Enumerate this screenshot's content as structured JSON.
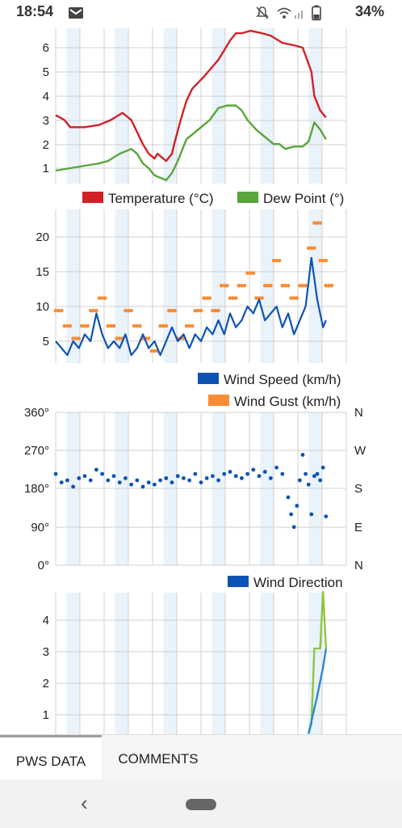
{
  "status_bar": {
    "time": "18:54",
    "battery": "34%",
    "icons": [
      "mail-icon",
      "mute-icon",
      "wifi-icon",
      "signal-icon",
      "battery-icon"
    ]
  },
  "colors": {
    "temperature": "#d32027",
    "dew_point": "#59a53b",
    "wind_speed": "#0d53b5",
    "wind_gust": "#f88c34",
    "wind_direction": "#0d53b5",
    "band": "#eaf2fa",
    "grid": "#d0d0d0"
  },
  "chart_data": [
    {
      "type": "line",
      "title": "",
      "y_ticks": [
        "1",
        "2",
        "3",
        "4",
        "5",
        "6"
      ],
      "ylim": [
        0.6,
        6.8
      ],
      "x_range": [
        0,
        100
      ],
      "legend_position": "bottom",
      "series": [
        {
          "name": "Temperature (°C)",
          "x": [
            0,
            3,
            5,
            10,
            15,
            19,
            23,
            26,
            28,
            30,
            32,
            34,
            35,
            38,
            40,
            41,
            43,
            45,
            47,
            51,
            56,
            60,
            62,
            64,
            67,
            71,
            74,
            78,
            82,
            85,
            88,
            89,
            91,
            93
          ],
          "values": [
            3.2,
            3.0,
            2.7,
            2.7,
            2.8,
            3.0,
            3.3,
            3.0,
            2.5,
            2.0,
            1.6,
            1.4,
            1.6,
            1.3,
            1.6,
            2.1,
            3.0,
            3.8,
            4.3,
            4.8,
            5.5,
            6.3,
            6.6,
            6.6,
            6.7,
            6.6,
            6.5,
            6.2,
            6.1,
            6.0,
            5.0,
            4.0,
            3.4,
            3.1
          ]
        },
        {
          "name": "Dew Point (°)",
          "x": [
            0,
            5,
            10,
            15,
            18,
            22,
            26,
            28,
            30,
            32,
            34,
            36,
            38,
            40,
            42,
            45,
            49,
            53,
            56,
            59,
            62,
            64,
            66,
            69,
            72,
            75,
            77,
            79,
            82,
            85,
            87,
            89,
            91,
            93
          ],
          "values": [
            0.9,
            1.0,
            1.1,
            1.2,
            1.3,
            1.6,
            1.8,
            1.6,
            1.2,
            1.0,
            0.7,
            0.6,
            0.5,
            0.8,
            1.3,
            2.2,
            2.6,
            3.0,
            3.5,
            3.6,
            3.6,
            3.4,
            3.0,
            2.6,
            2.3,
            2.0,
            2.0,
            1.8,
            1.9,
            1.9,
            2.1,
            2.9,
            2.6,
            2.2
          ]
        }
      ]
    },
    {
      "type": "line",
      "title": "",
      "y_ticks": [
        "5",
        "10",
        "15",
        "20"
      ],
      "ylim": [
        2,
        24
      ],
      "x_range": [
        0,
        100
      ],
      "legend_position": "bottom-right",
      "series": [
        {
          "name": "Wind Speed (km/h)",
          "x": [
            0,
            2,
            4,
            6,
            8,
            10,
            12,
            14,
            16,
            18,
            20,
            22,
            24,
            26,
            28,
            30,
            32,
            34,
            36,
            38,
            40,
            42,
            44,
            46,
            48,
            50,
            52,
            54,
            56,
            58,
            60,
            62,
            64,
            66,
            68,
            70,
            72,
            74,
            76,
            78,
            80,
            82,
            84,
            86,
            88,
            90,
            92,
            93
          ],
          "values": [
            5,
            4,
            3,
            5,
            4,
            6,
            5,
            9,
            6,
            4,
            5,
            4,
            6,
            3,
            4,
            6,
            4,
            5,
            3,
            5,
            7,
            5,
            6,
            4,
            6,
            5,
            7,
            6,
            8,
            6,
            9,
            7,
            8,
            10,
            9,
            11,
            8,
            9,
            10,
            7,
            9,
            6,
            8,
            10,
            17,
            11,
            7,
            8
          ]
        },
        {
          "name": "Wind Gust (km/h)",
          "x": [
            0,
            3,
            6,
            9,
            12,
            15,
            18,
            21,
            24,
            27,
            30,
            33,
            36,
            39,
            42,
            45,
            48,
            51,
            54,
            57,
            60,
            63,
            66,
            69,
            72,
            75,
            78,
            81,
            84,
            87,
            89,
            91,
            93
          ],
          "values": [
            9.4,
            7.2,
            5.4,
            7.2,
            9.4,
            11.2,
            7.2,
            5.4,
            9.4,
            7.2,
            5.4,
            3.6,
            7.2,
            9.4,
            5.4,
            7.2,
            9.4,
            11.2,
            9.4,
            13.0,
            11.2,
            13.0,
            14.8,
            11.2,
            13.0,
            16.6,
            13.0,
            11.2,
            13.0,
            18.4,
            22.0,
            16.6,
            13.0
          ]
        }
      ]
    },
    {
      "type": "scatter",
      "title": "",
      "y_ticks": [
        "0°",
        "90°",
        "180°",
        "270°",
        "360°"
      ],
      "y_ticks_right": [
        "N",
        "E",
        "S",
        "W",
        "N"
      ],
      "ylim": [
        0,
        360
      ],
      "x_range": [
        0,
        100
      ],
      "legend_position": "bottom-right",
      "series": [
        {
          "name": "Wind Direction",
          "x": [
            0,
            2,
            4,
            6,
            8,
            10,
            12,
            14,
            16,
            18,
            20,
            22,
            24,
            26,
            28,
            30,
            32,
            34,
            36,
            38,
            40,
            42,
            44,
            46,
            48,
            50,
            52,
            54,
            56,
            58,
            60,
            62,
            64,
            66,
            68,
            70,
            72,
            74,
            76,
            78,
            80,
            81,
            82,
            83,
            84,
            85,
            86,
            87,
            88,
            89,
            90,
            91,
            92,
            93
          ],
          "values": [
            215,
            195,
            200,
            185,
            205,
            210,
            200,
            225,
            215,
            200,
            210,
            195,
            205,
            190,
            200,
            185,
            195,
            190,
            200,
            205,
            195,
            210,
            205,
            200,
            215,
            195,
            205,
            210,
            200,
            215,
            220,
            210,
            205,
            215,
            225,
            210,
            220,
            205,
            230,
            215,
            160,
            120,
            90,
            140,
            200,
            260,
            215,
            190,
            120,
            210,
            215,
            200,
            230,
            115
          ]
        }
      ]
    },
    {
      "type": "line",
      "title": "",
      "y_ticks": [
        "1",
        "2",
        "3",
        "4"
      ],
      "ylim": [
        0.4,
        4.9
      ],
      "x_range": [
        0,
        100
      ],
      "series": [
        {
          "x": [
            87,
            88,
            89,
            90,
            91,
            92,
            93
          ],
          "values": [
            0.4,
            0.7,
            3.1,
            3.1,
            3.1,
            4.9,
            3.1
          ]
        },
        {
          "x": [
            87,
            88,
            90,
            92,
            93
          ],
          "values": [
            0.4,
            0.8,
            1.6,
            2.5,
            3.1
          ]
        }
      ]
    }
  ],
  "tabs": [
    {
      "label": "PWS DATA",
      "active": true
    },
    {
      "label": "COMMENTS",
      "active": false
    }
  ]
}
